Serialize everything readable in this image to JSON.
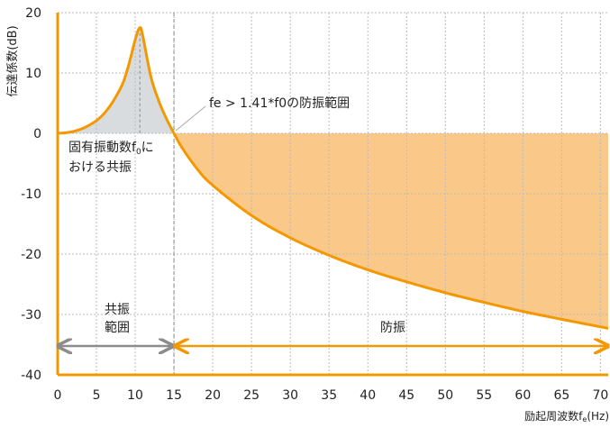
{
  "chart_data": {
    "type": "line",
    "ylabel": "伝達係数(dB)",
    "xlabel_main": "励起周波数f",
    "xlabel_sub": "e",
    "xlabel_unit": "(Hz)",
    "xlim": [
      0,
      71
    ],
    "ylim": [
      -40,
      20
    ],
    "x_ticks": [
      0,
      5,
      10,
      15,
      20,
      25,
      30,
      35,
      40,
      45,
      50,
      55,
      60,
      65,
      70
    ],
    "y_ticks": [
      20,
      10,
      0,
      -10,
      -20,
      -30,
      -40
    ],
    "y_tick_labels": [
      "20",
      "10",
      "0",
      "-10",
      "-20",
      "-30",
      "-40"
    ],
    "grid": true,
    "resonance_freq": 10.6,
    "isolation_start": 15,
    "series": [
      {
        "x": [
          0,
          2,
          4,
          6,
          8,
          9,
          10,
          10.6,
          11,
          12,
          13,
          14,
          15,
          16,
          18,
          20,
          25,
          30,
          35,
          40,
          45,
          50,
          55,
          60,
          65,
          71
        ],
        "y": [
          0.0,
          0.3,
          1.3,
          3.3,
          7.2,
          10.6,
          15.5,
          17.5,
          16.0,
          9.5,
          5.5,
          2.5,
          0.0,
          -2.3,
          -5.9,
          -8.6,
          -13.6,
          -17.3,
          -20.2,
          -22.6,
          -24.6,
          -26.4,
          -28.0,
          -29.5,
          -30.8,
          -32.3
        ]
      }
    ],
    "annotations": {
      "isolation_formula": "fe > 1.41*f0の防振範囲",
      "resonance_line1_a": "固有振動数f",
      "resonance_line1_sub": "0",
      "resonance_line1_b": "に",
      "resonance_line2": "おける共振",
      "resonance_range_line1": "共振",
      "resonance_range_line2": "範囲",
      "isolation_label": "防振"
    },
    "colors": {
      "curve": "#f39800",
      "isolation_fill": "#fac98a",
      "resonance_fill": "#d9dcdf",
      "resonance_arrow": "#8c8c8c",
      "isolation_arrow": "#f39800",
      "axis": "#f39800",
      "grid": "#bbbbbb"
    }
  }
}
